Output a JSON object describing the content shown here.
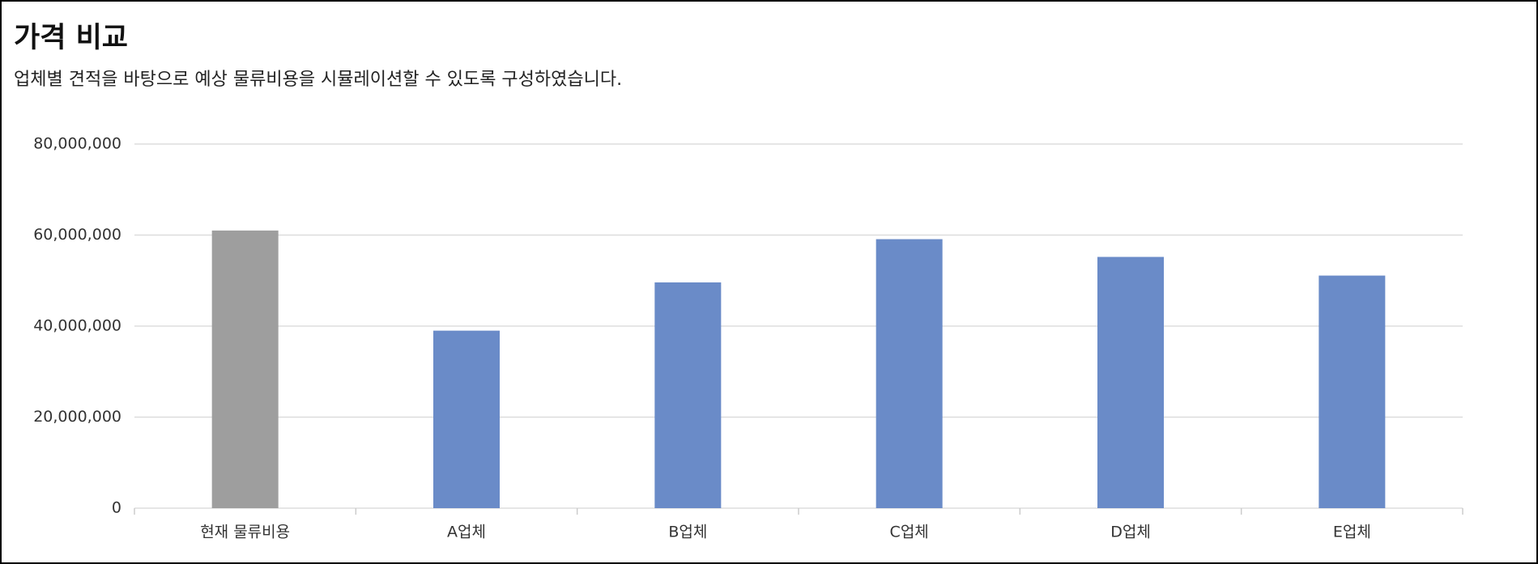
{
  "chart_data": {
    "type": "bar",
    "title": "가격 비교",
    "subtitle": "업체별 견적을 바탕으로 예상 물류비용을 시뮬레이션할 수 있도록 구성하였습니다.",
    "categories": [
      "현재 물류비용",
      "A업체",
      "B업체",
      "C업체",
      "D업체",
      "E업체"
    ],
    "values": [
      61000000,
      39000000,
      49600000,
      59100000,
      55200000,
      51100000
    ],
    "colors": [
      "#9e9e9e",
      "#6a8bc8",
      "#6a8bc8",
      "#6a8bc8",
      "#6a8bc8",
      "#6a8bc8"
    ],
    "ylim": [
      0,
      80000000
    ],
    "yticks": [
      0,
      {
        "value": 20000000,
        "label": "20,000,000"
      },
      {
        "value": 40000000,
        "label": "40,000,000"
      },
      {
        "value": 60000000,
        "label": "60,000,000"
      },
      {
        "value": 80000000,
        "label": "80,000,000"
      }
    ],
    "grid": true
  }
}
